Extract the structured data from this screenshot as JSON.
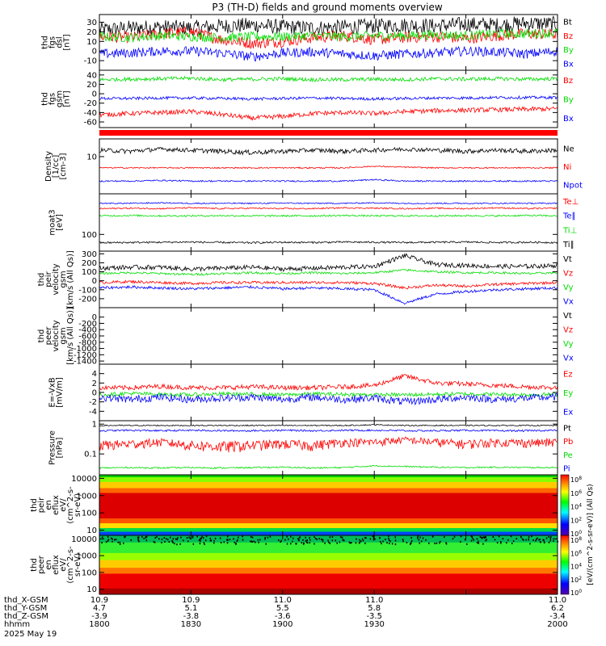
{
  "title": "P3 (TH-D) fields and ground moments overview",
  "colors": {
    "black": "#000000",
    "red": "#ff0000",
    "green": "#00dd00",
    "blue": "#0000ff"
  },
  "chart_data": [
    {
      "type": "line",
      "id": "fgs_dsl",
      "ylabel": [
        "thd",
        "fgs",
        "dsl",
        "[nT]"
      ],
      "ylim": [
        -20,
        38
      ],
      "ticks": [
        30,
        20,
        10,
        0,
        -10
      ],
      "legend": [
        "Bt",
        "Bz",
        "By",
        "Bx"
      ],
      "series": [
        {
          "name": "Bt",
          "color": "black",
          "base": [
            22,
            24,
            25,
            24,
            26,
            27,
            25,
            24,
            25,
            26,
            27,
            26,
            28,
            27,
            29,
            28
          ],
          "noise": 8
        },
        {
          "name": "Bz",
          "color": "red",
          "base": [
            15,
            14,
            18,
            20,
            12,
            8,
            10,
            14,
            16,
            12,
            14,
            15,
            13,
            16,
            18,
            17
          ],
          "noise": 6
        },
        {
          "name": "By",
          "color": "green",
          "base": [
            15,
            14,
            16,
            15,
            14,
            15,
            15,
            16,
            15,
            16,
            16,
            17,
            16,
            18,
            18,
            19
          ],
          "noise": 5
        },
        {
          "name": "Bx",
          "color": "blue",
          "base": [
            -3,
            -2,
            0,
            0,
            -2,
            -6,
            -2,
            -1,
            -3,
            -5,
            -3,
            -2,
            0,
            -1,
            -3,
            0
          ],
          "noise": 5
        }
      ]
    },
    {
      "type": "line",
      "id": "fgs_gsm",
      "ylabel": [
        "thd",
        "fgs",
        "gsm",
        "[nT]"
      ],
      "ylim": [
        -72,
        50
      ],
      "ticks": [
        40,
        20,
        0,
        -20,
        -40,
        -60
      ],
      "legend": [
        "Bz",
        "By",
        "Bx"
      ],
      "series": [
        {
          "name": "Bz",
          "color": "red",
          "base": [
            -45,
            -42,
            -40,
            -38,
            -44,
            -52,
            -48,
            -42,
            -40,
            -42,
            -38,
            -36,
            -35,
            -34,
            -33,
            -32
          ],
          "noise": 5
        },
        {
          "name": "By",
          "color": "green",
          "base": [
            30,
            31,
            32,
            33,
            30,
            31,
            32,
            30,
            30,
            31,
            30,
            32,
            31,
            32,
            31,
            32
          ],
          "noise": 4
        },
        {
          "name": "Bx",
          "color": "blue",
          "base": [
            -10,
            -10,
            -9,
            -9,
            -10,
            -11,
            -10,
            -9,
            -10,
            -11,
            -10,
            -9,
            -9,
            -8,
            -8,
            -8
          ],
          "noise": 3
        }
      ]
    },
    {
      "type": "line",
      "id": "density",
      "ylabel": [
        "Density",
        "[1/cc]",
        "[cm-3]"
      ],
      "ylim": [
        1,
        30
      ],
      "log": true,
      "ticks": [
        10
      ],
      "legend": [
        "Ne",
        "Ni",
        "Npot"
      ],
      "series": [
        {
          "name": "Ne",
          "color": "black",
          "base": [
            15,
            14,
            16,
            15,
            14,
            13,
            14,
            15,
            14,
            15,
            16,
            15,
            14,
            15,
            14,
            15
          ],
          "noise": 2
        },
        {
          "name": "Ni",
          "color": "red",
          "base": [
            5,
            5,
            5,
            5,
            5,
            5,
            5,
            5,
            5,
            5.5,
            5.2,
            5,
            5,
            5,
            5,
            5
          ],
          "noise": 0.2
        },
        {
          "name": "Npot",
          "color": "blue",
          "base": [
            2.2,
            2.2,
            2.3,
            2.2,
            2.2,
            2.2,
            2.2,
            2.2,
            2.2,
            2.4,
            2.2,
            2.2,
            2.2,
            2.2,
            2.2,
            2.2
          ],
          "noise": 0.1
        }
      ]
    },
    {
      "type": "line",
      "id": "temp",
      "ylabel": [
        "moat3",
        "[eV]"
      ],
      "ylim": [
        20,
        5000
      ],
      "log": true,
      "ticks": [
        100
      ],
      "legend": [
        "Te⊥",
        "Te∥",
        "Ti⊥",
        "Ti∥"
      ],
      "series": [
        {
          "name": "Te⊥",
          "color": "red",
          "base": [
            1200,
            1250,
            1200,
            1300,
            1200,
            1250,
            1200,
            1200,
            1300,
            1250,
            1200,
            1250,
            1200,
            1300,
            1200,
            1250
          ],
          "noise": 80
        },
        {
          "name": "Te∥",
          "color": "blue",
          "base": [
            2000,
            2000,
            2100,
            2000,
            2000,
            2000,
            2050,
            2000,
            2000,
            2100,
            2000,
            2000,
            2000,
            2000,
            2000,
            2000
          ],
          "noise": 120
        },
        {
          "name": "Ti⊥",
          "color": "green",
          "base": [
            600,
            620,
            600,
            600,
            610,
            600,
            600,
            600,
            620,
            600,
            600,
            600,
            610,
            600,
            620,
            600
          ],
          "noise": 50
        },
        {
          "name": "Ti∥",
          "color": "black",
          "base": [
            45,
            46,
            47,
            48,
            46,
            45,
            47,
            46,
            48,
            47,
            46,
            47,
            48,
            46,
            47,
            46
          ],
          "noise": 4
        }
      ]
    },
    {
      "type": "line",
      "id": "peir_vel",
      "ylabel": [
        "thd",
        "peir",
        "velocity",
        "gsm",
        "[km/s (All Qs)]"
      ],
      "ylim": [
        -300,
        330
      ],
      "ticks": [
        300,
        200,
        100,
        0,
        -100,
        -200
      ],
      "legend": [
        "Vt",
        "Vz",
        "Vy",
        "Vx"
      ],
      "series": [
        {
          "name": "Vt",
          "color": "black",
          "base": [
            140,
            150,
            150,
            130,
            140,
            150,
            130,
            140,
            150,
            160,
            280,
            180,
            170,
            160,
            160,
            170
          ],
          "noise": 25
        },
        {
          "name": "Vz",
          "color": "red",
          "base": [
            -20,
            -10,
            -20,
            -30,
            -20,
            -20,
            -20,
            -20,
            -20,
            -30,
            -80,
            -50,
            -60,
            -40,
            -30,
            -20
          ],
          "noise": 15
        },
        {
          "name": "Vy",
          "color": "green",
          "base": [
            80,
            90,
            80,
            70,
            80,
            90,
            80,
            90,
            80,
            90,
            120,
            100,
            90,
            90,
            80,
            90
          ],
          "noise": 12
        },
        {
          "name": "Vx",
          "color": "blue",
          "base": [
            -80,
            -70,
            -80,
            -90,
            -80,
            -70,
            -90,
            -80,
            -90,
            -100,
            -250,
            -150,
            -120,
            -100,
            -90,
            -80
          ],
          "noise": 15
        }
      ]
    },
    {
      "type": "line",
      "id": "peer_vel",
      "ylabel": [
        "thd",
        "peer",
        "velocity",
        "gsm",
        "[km/s (All Qs)]"
      ],
      "ylim": [
        -1500,
        300
      ],
      "ticks": [
        0,
        -200,
        -400,
        -600,
        -800,
        -1000,
        -1200,
        -1400
      ],
      "legend": [
        "Vt",
        "Vz",
        "Vy",
        "Vx"
      ],
      "series": []
    },
    {
      "type": "line",
      "id": "efield",
      "ylabel": [
        "E=-VxB",
        "[mV/m]"
      ],
      "ylim": [
        -6,
        6
      ],
      "ticks": [
        4,
        2,
        0,
        -2,
        -4
      ],
      "legend": [
        "Ez",
        "Ey",
        "Ex"
      ],
      "series": [
        {
          "name": "Ez",
          "color": "red",
          "base": [
            1,
            1,
            1.3,
            1,
            1,
            1.2,
            1,
            1,
            1.2,
            1.5,
            3.5,
            2,
            1.8,
            1.5,
            1.2,
            1
          ],
          "noise": 0.5
        },
        {
          "name": "Ey",
          "color": "green",
          "base": [
            -0.5,
            -0.2,
            -0.4,
            -0.5,
            -0.3,
            -0.4,
            -0.5,
            -0.3,
            -0.4,
            -0.5,
            -0.5,
            -0.4,
            -0.3,
            -0.4,
            -0.5,
            -0.4
          ],
          "noise": 0.4
        },
        {
          "name": "Ex",
          "color": "blue",
          "base": [
            -1,
            -1.5,
            -1,
            -1.5,
            -1.2,
            -1,
            -1.5,
            -1,
            -1.5,
            -1.2,
            -2,
            -1.5,
            -1,
            -1.5,
            -1.2,
            -1
          ],
          "noise": 0.8
        }
      ]
    },
    {
      "type": "line",
      "id": "pressure",
      "ylabel": [
        "Pressure",
        "[nPa]"
      ],
      "ylim": [
        0.02,
        1.3
      ],
      "log": true,
      "ticks": [
        1.0,
        0.1
      ],
      "legend": [
        "Pt",
        "Pb",
        "Pe",
        "Pi"
      ],
      "series": [
        {
          "name": "Pt",
          "color": "black",
          "base": [
            0.9,
            0.9,
            0.9,
            0.9,
            0.9,
            0.9,
            0.9,
            0.9,
            0.9,
            0.95,
            0.9,
            0.9,
            0.9,
            0.9,
            0.9,
            0.9
          ],
          "noise": 0.04
        },
        {
          "name": "Pb",
          "color": "red",
          "base": [
            0.2,
            0.22,
            0.25,
            0.2,
            0.18,
            0.2,
            0.22,
            0.2,
            0.25,
            0.25,
            0.3,
            0.25,
            0.22,
            0.25,
            0.24,
            0.25
          ],
          "noise": 0.08
        },
        {
          "name": "Pe",
          "color": "green",
          "base": [
            0.034,
            0.035,
            0.034,
            0.035,
            0.034,
            0.035,
            0.036,
            0.034,
            0.035,
            0.04,
            0.038,
            0.036,
            0.035,
            0.036,
            0.035,
            0.035
          ],
          "noise": 0.002
        },
        {
          "name": "Pi",
          "color": "blue",
          "base": [
            0.6,
            0.62,
            0.6,
            0.62,
            0.6,
            0.6,
            0.62,
            0.6,
            0.62,
            0.62,
            0.6,
            0.6,
            0.62,
            0.6,
            0.6,
            0.62
          ],
          "noise": 0.04
        }
      ]
    },
    {
      "type": "heatmap",
      "id": "peir_spec",
      "ylabel": [
        "thd",
        "peir",
        "en",
        "eflux",
        "eV/",
        "(cm^2-s-",
        "sr-eV)"
      ],
      "ylim": [
        5,
        16000
      ],
      "log": true,
      "ticks": [
        10000,
        1000,
        100,
        10
      ]
    },
    {
      "type": "heatmap",
      "id": "peer_spec",
      "ylabel": [
        "thd",
        "peer",
        "en",
        "eflux",
        "eV/",
        "(cm^2-s-",
        "sr-eV)"
      ],
      "ylim": [
        5,
        16000
      ],
      "log": true,
      "ticks": [
        10000,
        1000,
        100,
        10
      ]
    }
  ],
  "colorbar": {
    "label": "[eV/(cm^2-s-sr-eV)] (All Qs)",
    "top": [
      "10^8",
      "10^6",
      "10^4",
      "10^2",
      "10^0"
    ],
    "bottom": [
      "10^8",
      "10^6",
      "10^4",
      "10^2",
      "10^0"
    ]
  },
  "x_axis": {
    "row_labels": [
      "thd_X-GSM",
      "thd_Y-GSM",
      "thd_Z-GSM",
      "hhmm",
      "2025 May 19"
    ],
    "ticks": [
      {
        "pos": 0,
        "X": "10.9",
        "Y": "4.7",
        "Z": "-3.9",
        "hhmm": "1800"
      },
      {
        "pos": 0.2,
        "X": "10.9",
        "Y": "5.1",
        "Z": "-3.8",
        "hhmm": "1830"
      },
      {
        "pos": 0.4,
        "X": "11.0",
        "Y": "5.5",
        "Z": "-3.6",
        "hhmm": "1900"
      },
      {
        "pos": 0.6,
        "X": "11.0",
        "Y": "5.8",
        "Z": "-3.5",
        "hhmm": "1930"
      },
      {
        "pos": 0.8,
        "X": "",
        "Y": "",
        "Z": "",
        "hhmm": ""
      },
      {
        "pos": 1,
        "X": "11.0",
        "Y": "6.2",
        "Z": "-3.4",
        "hhmm": "2000"
      }
    ]
  }
}
